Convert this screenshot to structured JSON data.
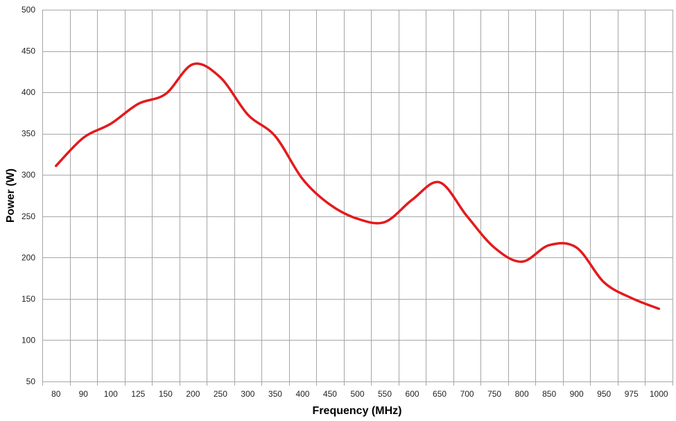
{
  "chart_data": {
    "type": "line",
    "title": "",
    "xlabel": "Frequency (MHz)",
    "ylabel": "Power (W)",
    "ylim": [
      50,
      500
    ],
    "y_ticks": [
      50,
      100,
      150,
      200,
      250,
      300,
      350,
      400,
      450,
      500
    ],
    "categories": [
      "80",
      "90",
      "100",
      "125",
      "150",
      "200",
      "250",
      "300",
      "350",
      "400",
      "450",
      "500",
      "550",
      "600",
      "650",
      "700",
      "750",
      "800",
      "850",
      "900",
      "950",
      "975",
      "1000"
    ],
    "grid": true,
    "legend": "none",
    "series": [
      {
        "name": "",
        "color": "#e31a1c",
        "values": [
          311,
          345,
          362,
          386,
          398,
          434,
          418,
          373,
          347,
          295,
          264,
          247,
          243,
          270,
          291,
          250,
          212,
          195,
          215,
          212,
          170,
          151,
          138
        ]
      }
    ]
  }
}
